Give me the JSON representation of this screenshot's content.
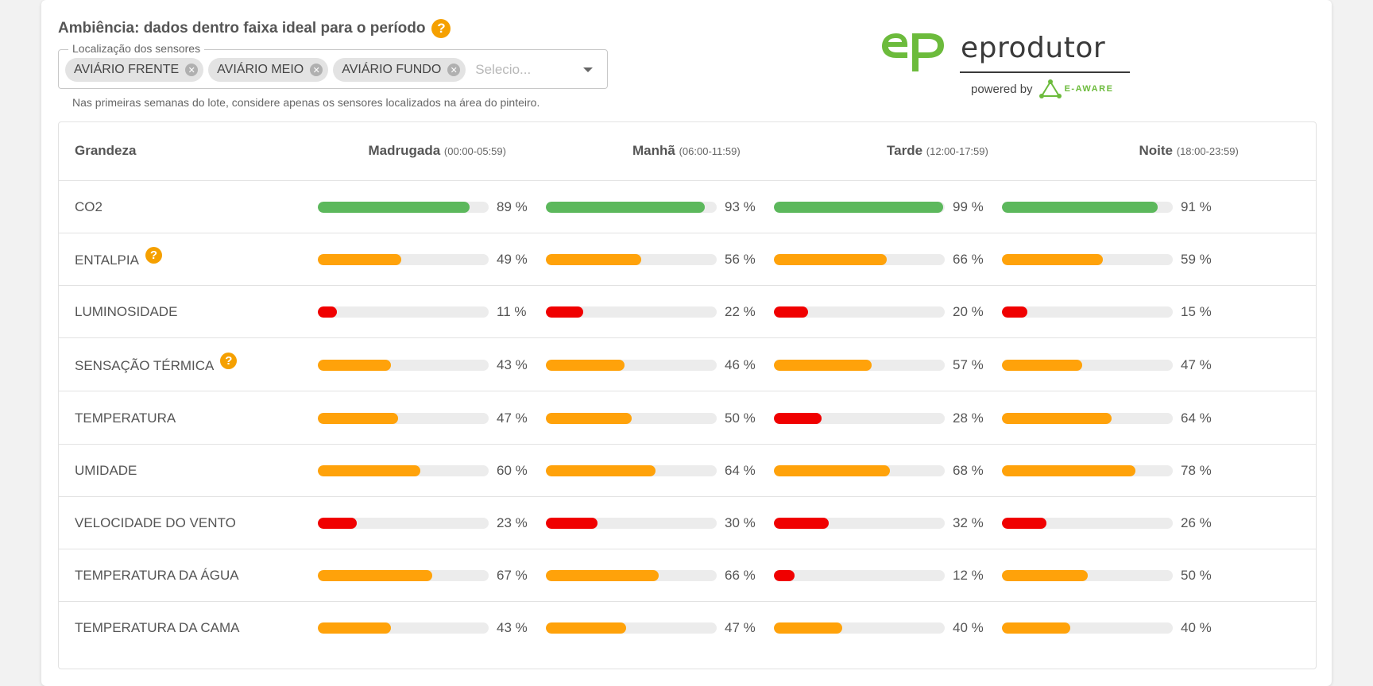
{
  "header": {
    "title": "Ambiência: dados dentro faixa ideal para o período",
    "help_icon": "?"
  },
  "sensors": {
    "legend": "Localização dos sensores",
    "chips": [
      "AVIÁRIO FRENTE",
      "AVIÁRIO MEIO",
      "AVIÁRIO FUNDO"
    ],
    "placeholder": "Selecio...",
    "helper": "Nas primeiras semanas do lote, considere apenas os sensores localizados na área do pinteiro."
  },
  "logo": {
    "word": "eprodutor",
    "powered": "powered by",
    "partner": "E-AWARE"
  },
  "colors": {
    "green": "#5cb85c",
    "orange": "#ffa20a",
    "red": "#f00000",
    "help": "#f5a000"
  },
  "table": {
    "first_header": "Grandeza",
    "columns": [
      {
        "name": "Madrugada",
        "range": "(00:00-05:59)"
      },
      {
        "name": "Manhã",
        "range": "(06:00-11:59)"
      },
      {
        "name": "Tarde",
        "range": "(12:00-17:59)"
      },
      {
        "name": "Noite",
        "range": "(18:00-23:59)"
      }
    ],
    "rows": [
      {
        "label": "CO2",
        "help": false,
        "values": [
          89,
          93,
          99,
          91
        ],
        "status": [
          "green",
          "green",
          "green",
          "green"
        ]
      },
      {
        "label": "ENTALPIA",
        "help": true,
        "values": [
          49,
          56,
          66,
          59
        ],
        "status": [
          "orange",
          "orange",
          "orange",
          "orange"
        ]
      },
      {
        "label": "LUMINOSIDADE",
        "help": false,
        "values": [
          11,
          22,
          20,
          15
        ],
        "status": [
          "red",
          "red",
          "red",
          "red"
        ]
      },
      {
        "label": "SENSAÇÃO TÉRMICA",
        "help": true,
        "values": [
          43,
          46,
          57,
          47
        ],
        "status": [
          "orange",
          "orange",
          "orange",
          "orange"
        ]
      },
      {
        "label": "TEMPERATURA",
        "help": false,
        "values": [
          47,
          50,
          28,
          64
        ],
        "status": [
          "orange",
          "orange",
          "red",
          "orange"
        ]
      },
      {
        "label": "UMIDADE",
        "help": false,
        "values": [
          60,
          64,
          68,
          78
        ],
        "status": [
          "orange",
          "orange",
          "orange",
          "orange"
        ]
      },
      {
        "label": "VELOCIDADE DO VENTO",
        "help": false,
        "values": [
          23,
          30,
          32,
          26
        ],
        "status": [
          "red",
          "red",
          "red",
          "red"
        ]
      },
      {
        "label": "TEMPERATURA DA ÁGUA",
        "help": false,
        "values": [
          67,
          66,
          12,
          50
        ],
        "status": [
          "orange",
          "orange",
          "red",
          "orange"
        ]
      },
      {
        "label": "TEMPERATURA DA CAMA",
        "help": false,
        "values": [
          43,
          47,
          40,
          40
        ],
        "status": [
          "orange",
          "orange",
          "orange",
          "orange"
        ]
      }
    ]
  }
}
